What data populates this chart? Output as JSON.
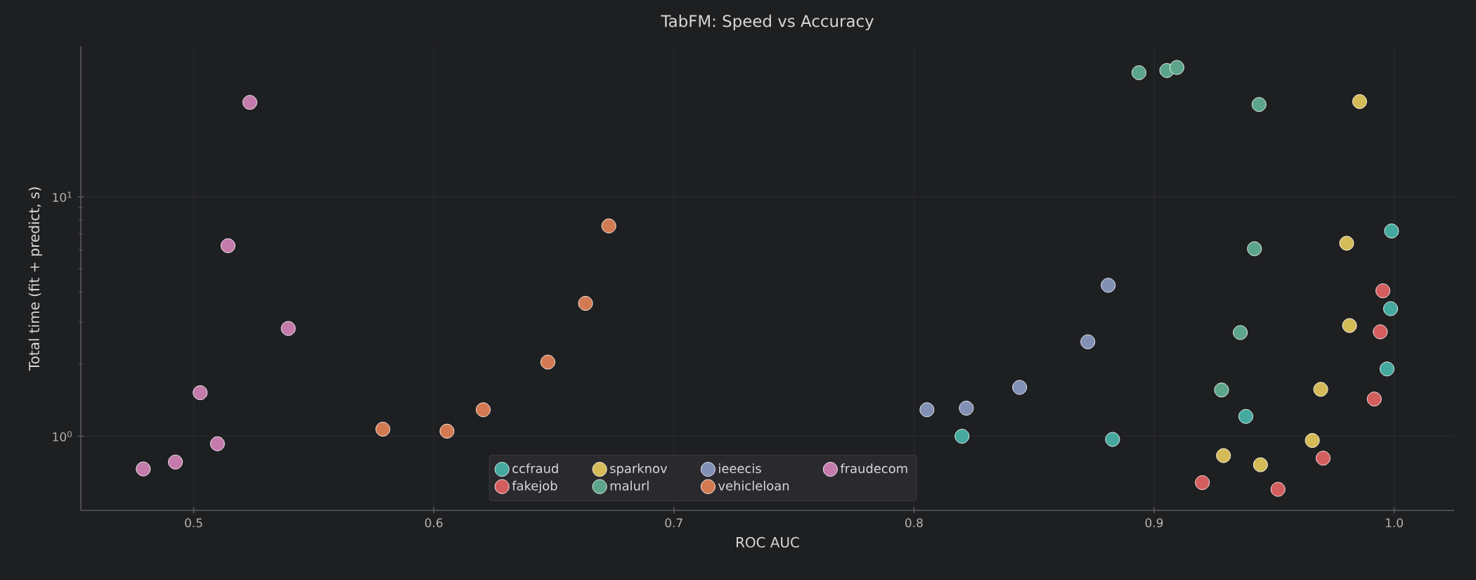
{
  "chart_data": {
    "type": "scatter",
    "title": "TabFM: Speed vs Accuracy",
    "xlabel": "ROC AUC",
    "ylabel": "Total time (fit + predict, s)",
    "log": "y",
    "grid": true,
    "legend": "bottom",
    "xlim": [
      0.453,
      1.025
    ],
    "ylim": [
      0.49,
      42.5
    ],
    "xticks": [
      0.5,
      0.6,
      0.7,
      0.8,
      0.9,
      {
        "value": 1.0,
        "label": "1.0"
      }
    ],
    "yticks": [
      {
        "value": 1,
        "label": "10$^{0}$"
      },
      {
        "value": 10,
        "label": "10$^{1}$"
      }
    ],
    "series": [
      {
        "name": "ccfraud",
        "color": "#45a99f",
        "x": [
          0.82,
          0.8827,
          0.9382,
          0.997,
          0.9985,
          0.9989
        ],
        "values": [
          1.0,
          0.97,
          1.21,
          1.91,
          3.41,
          7.2
        ]
      },
      {
        "name": "sparknov",
        "color": "#d4bb57",
        "x": [
          0.9856,
          0.9802,
          0.9814,
          0.9694,
          0.9659,
          0.9289,
          0.9443
        ],
        "values": [
          25.0,
          6.4,
          2.9,
          1.57,
          0.96,
          0.83,
          0.76
        ]
      },
      {
        "name": "ieeecis",
        "color": "#8190b4",
        "x": [
          0.8054,
          0.8218,
          0.844,
          0.8724,
          0.8809
        ],
        "values": [
          1.29,
          1.31,
          1.6,
          2.48,
          4.27
        ]
      },
      {
        "name": "fraudecom",
        "color": "#c47bab",
        "x": [
          0.479,
          0.4924,
          0.5027,
          0.5099,
          0.5143,
          0.5234,
          0.5394
        ],
        "values": [
          0.73,
          0.78,
          1.52,
          0.93,
          6.25,
          24.8,
          2.82
        ]
      },
      {
        "name": "fakejob",
        "color": "#d45e5e",
        "x": [
          0.9953,
          0.9942,
          0.9917,
          0.9704,
          0.9201,
          0.9516
        ],
        "values": [
          4.05,
          2.73,
          1.43,
          0.81,
          0.64,
          0.6
        ]
      },
      {
        "name": "malurl",
        "color": "#5da58a",
        "x": [
          0.8937,
          0.9053,
          0.9095,
          0.9437,
          0.9418,
          0.9359,
          0.9281
        ],
        "values": [
          33.0,
          33.7,
          34.7,
          24.3,
          6.07,
          2.71,
          1.56
        ]
      },
      {
        "name": "vehicleloan",
        "color": "#d47a52",
        "x": [
          0.5788,
          0.6055,
          0.6206,
          0.6475,
          0.6632,
          0.6729
        ],
        "values": [
          1.07,
          1.05,
          1.29,
          2.04,
          3.59,
          7.56
        ]
      }
    ]
  }
}
